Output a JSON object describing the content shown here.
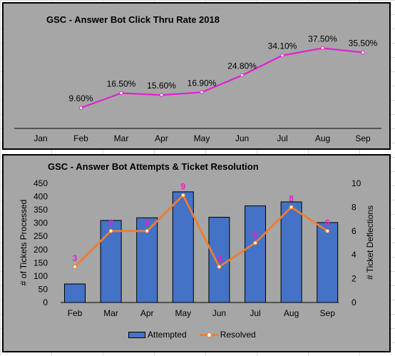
{
  "chart_data": [
    {
      "type": "line",
      "title": "GSC - Answer Bot Click Thru Rate 2018",
      "categories": [
        "Jan",
        "Feb",
        "Mar",
        "Apr",
        "May",
        "Jun",
        "Jul",
        "Aug",
        "Sep"
      ],
      "series": [
        {
          "values": [
            null,
            9.6,
            16.5,
            15.6,
            16.9,
            24.8,
            34.1,
            37.5,
            35.5
          ],
          "labels": [
            "",
            "9.60%",
            "16.50%",
            "15.60%",
            "16.90%",
            "24.80%",
            "34.10%",
            "37.50%",
            "35.50%"
          ],
          "color": "#e020d0"
        }
      ],
      "ylim": [
        0,
        40
      ],
      "grid": false
    },
    {
      "type": "bar",
      "title": "GSC - Answer Bot Attempts &  Ticket Resolution",
      "categories": [
        "Feb",
        "Mar",
        "Apr",
        "May",
        "Jun",
        "Jul",
        "Aug",
        "Sep"
      ],
      "series": [
        {
          "name": "Attempted",
          "type": "bar",
          "axis": "left",
          "color": "#4472c4",
          "values": [
            70,
            310,
            320,
            418,
            322,
            365,
            380,
            302
          ]
        },
        {
          "name": "Resolved",
          "type": "line",
          "axis": "right",
          "color": "#ed7d31",
          "label_color": "#e020d0",
          "values": [
            3,
            6,
            6,
            9,
            3,
            5,
            8,
            6
          ]
        }
      ],
      "ylabel": "# of Tickets Processed",
      "y2label": "# Ticket Deflections",
      "ylim": [
        0,
        450
      ],
      "yticks": [
        "0",
        "50",
        "100",
        "150",
        "200",
        "250",
        "300",
        "350",
        "400",
        "450"
      ],
      "y2lim": [
        0,
        10
      ],
      "y2ticks": [
        "0",
        "2",
        "4",
        "6",
        "8",
        "10"
      ],
      "legend": "bottom"
    }
  ]
}
